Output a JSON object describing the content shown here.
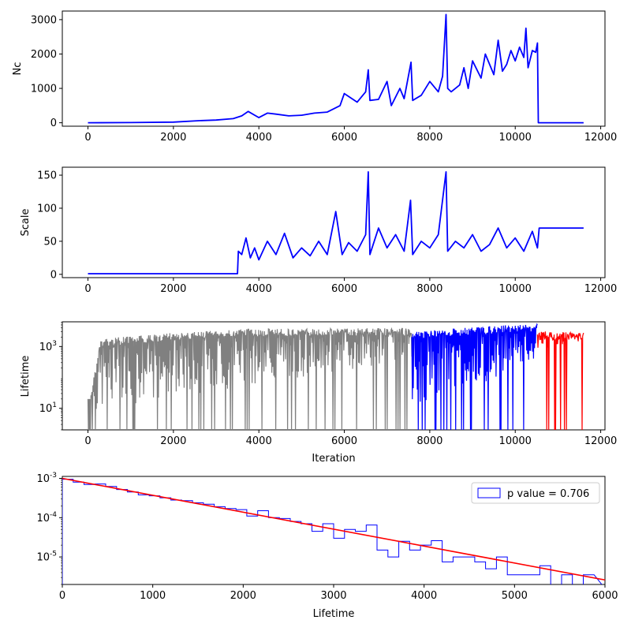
{
  "chart_data": [
    {
      "type": "line",
      "ylabel": "Nc",
      "xlim": [
        -600,
        12100
      ],
      "ylim": [
        -100,
        3250
      ],
      "xticks": [
        0,
        2000,
        4000,
        6000,
        8000,
        10000,
        12000
      ],
      "yticks": [
        0,
        1000,
        2000,
        3000
      ],
      "series": [
        {
          "color": "#0000ff",
          "x": [
            0,
            1000,
            2000,
            2600,
            3000,
            3400,
            3600,
            3750,
            4000,
            4200,
            4400,
            4700,
            5000,
            5300,
            5600,
            5900,
            6000,
            6300,
            6500,
            6560,
            6600,
            6800,
            7000,
            7100,
            7300,
            7400,
            7560,
            7600,
            7800,
            8000,
            8200,
            8300,
            8380,
            8420,
            8500,
            8700,
            8800,
            8900,
            9000,
            9200,
            9300,
            9500,
            9600,
            9700,
            9800,
            9900,
            10000,
            10100,
            10200,
            10250,
            10300,
            10400,
            10480,
            10520,
            10540,
            11600
          ],
          "values": [
            0,
            5,
            20,
            60,
            80,
            120,
            200,
            330,
            150,
            280,
            250,
            200,
            220,
            280,
            310,
            500,
            850,
            600,
            900,
            1540,
            650,
            680,
            1200,
            500,
            1000,
            700,
            1760,
            650,
            800,
            1200,
            900,
            1350,
            3150,
            1000,
            900,
            1100,
            1600,
            1000,
            1800,
            1300,
            2000,
            1400,
            2400,
            1500,
            1700,
            2100,
            1800,
            2200,
            1900,
            2750,
            1600,
            2100,
            2050,
            2320,
            0,
            0
          ]
        }
      ]
    },
    {
      "type": "line",
      "ylabel": "Scale",
      "xlim": [
        -600,
        12100
      ],
      "ylim": [
        -5,
        162
      ],
      "xticks": [
        0,
        2000,
        4000,
        6000,
        8000,
        10000,
        12000
      ],
      "yticks": [
        0,
        50,
        100,
        150
      ],
      "series": [
        {
          "color": "#0000ff",
          "x": [
            0,
            3500,
            3520,
            3600,
            3700,
            3800,
            3900,
            4000,
            4200,
            4400,
            4600,
            4800,
            5000,
            5200,
            5400,
            5600,
            5800,
            5950,
            6100,
            6300,
            6500,
            6560,
            6600,
            6800,
            7000,
            7200,
            7400,
            7550,
            7600,
            7800,
            8000,
            8200,
            8380,
            8420,
            8600,
            8800,
            9000,
            9200,
            9400,
            9600,
            9800,
            10000,
            10200,
            10400,
            10520,
            10560,
            11600
          ],
          "values": [
            1,
            1,
            35,
            30,
            55,
            25,
            40,
            22,
            50,
            30,
            62,
            25,
            40,
            28,
            50,
            30,
            95,
            30,
            48,
            35,
            60,
            155,
            30,
            70,
            40,
            60,
            35,
            112,
            30,
            50,
            40,
            60,
            155,
            35,
            50,
            40,
            60,
            35,
            45,
            70,
            40,
            55,
            35,
            65,
            40,
            70,
            70
          ]
        }
      ]
    },
    {
      "type": "line",
      "ylabel": "Lifetime",
      "xlabel": "Iteration",
      "yscale": "log",
      "xlim": [
        -600,
        12100
      ],
      "ylim_log10": [
        0.3,
        3.8
      ],
      "xticks": [
        0,
        2000,
        4000,
        6000,
        8000,
        10000,
        12000
      ],
      "yticks": [
        10,
        1000
      ],
      "ytick_labels": [
        "10^1",
        "10^3"
      ],
      "series": [
        {
          "color": "#808080",
          "x_range": [
            0,
            7580
          ],
          "upper_log10": [
            1.0,
            3.25,
            3.45,
            3.58,
            3.6
          ],
          "upper_x": [
            0,
            300,
            2000,
            4000,
            7580
          ],
          "lower_log10": [
            0.3,
            2.3
          ]
        },
        {
          "color": "#0000ff",
          "x_range": [
            7580,
            10520
          ],
          "upper_log10": [
            3.5,
            3.75
          ],
          "lower_log10": [
            0.3,
            2.2
          ]
        },
        {
          "color": "#ff0000",
          "x_range": [
            10520,
            11600
          ],
          "upper_log10": [
            3.5,
            3.45
          ],
          "lower_log10": [
            2.7,
            3.15
          ]
        }
      ]
    },
    {
      "type": "line",
      "xlabel": "Lifetime",
      "yscale": "log",
      "xlim": [
        0,
        6000
      ],
      "ylim_log10": [
        -5.7,
        -2.95
      ],
      "xticks": [
        0,
        1000,
        2000,
        3000,
        4000,
        5000,
        6000
      ],
      "yticks": [
        1e-05,
        0.0001,
        0.001
      ],
      "ytick_labels": [
        "10^-5",
        "10^-4",
        "10^-3"
      ],
      "legend": {
        "label": "p value = 0.706",
        "loc": "upper right"
      },
      "series": [
        {
          "kind": "step-histogram",
          "color": "#0000ff",
          "bin_edges": [
            0,
            120,
            240,
            360,
            480,
            600,
            720,
            840,
            960,
            1080,
            1200,
            1320,
            1440,
            1560,
            1680,
            1800,
            1920,
            2040,
            2160,
            2280,
            2400,
            2520,
            2640,
            2760,
            2880,
            3000,
            3120,
            3240,
            3360,
            3480,
            3600,
            3720,
            3840,
            3960,
            4080,
            4200,
            4320,
            4440,
            4560,
            4680,
            4800,
            4920,
            5040,
            5160,
            5280,
            5400,
            5520,
            5640,
            5760,
            5880
          ],
          "values": [
            0.00095,
            0.0008,
            0.0007,
            0.00072,
            0.00062,
            0.00052,
            0.00045,
            0.00038,
            0.00036,
            0.00032,
            0.00028,
            0.00027,
            0.00024,
            0.00022,
            0.00019,
            0.00017,
            0.00016,
            0.00011,
            0.00015,
            0.0001,
            9.5e-05,
            8e-05,
            7e-05,
            4.5e-05,
            7e-05,
            3e-05,
            5e-05,
            4.5e-05,
            6.5e-05,
            1.5e-05,
            1e-05,
            2.5e-05,
            1.5e-05,
            2e-05,
            2.6e-05,
            7.5e-06,
            1e-05,
            1e-05,
            7.5e-06,
            5e-06,
            1e-05,
            3.5e-06,
            3.5e-06,
            3.5e-06,
            6e-06,
            1.7e-06,
            3.5e-06,
            1.7e-06,
            3.5e-06
          ]
        },
        {
          "kind": "fit-line",
          "color": "#ff0000",
          "x": [
            0,
            6000
          ],
          "values": [
            0.001,
            2.6e-06
          ]
        }
      ]
    }
  ]
}
